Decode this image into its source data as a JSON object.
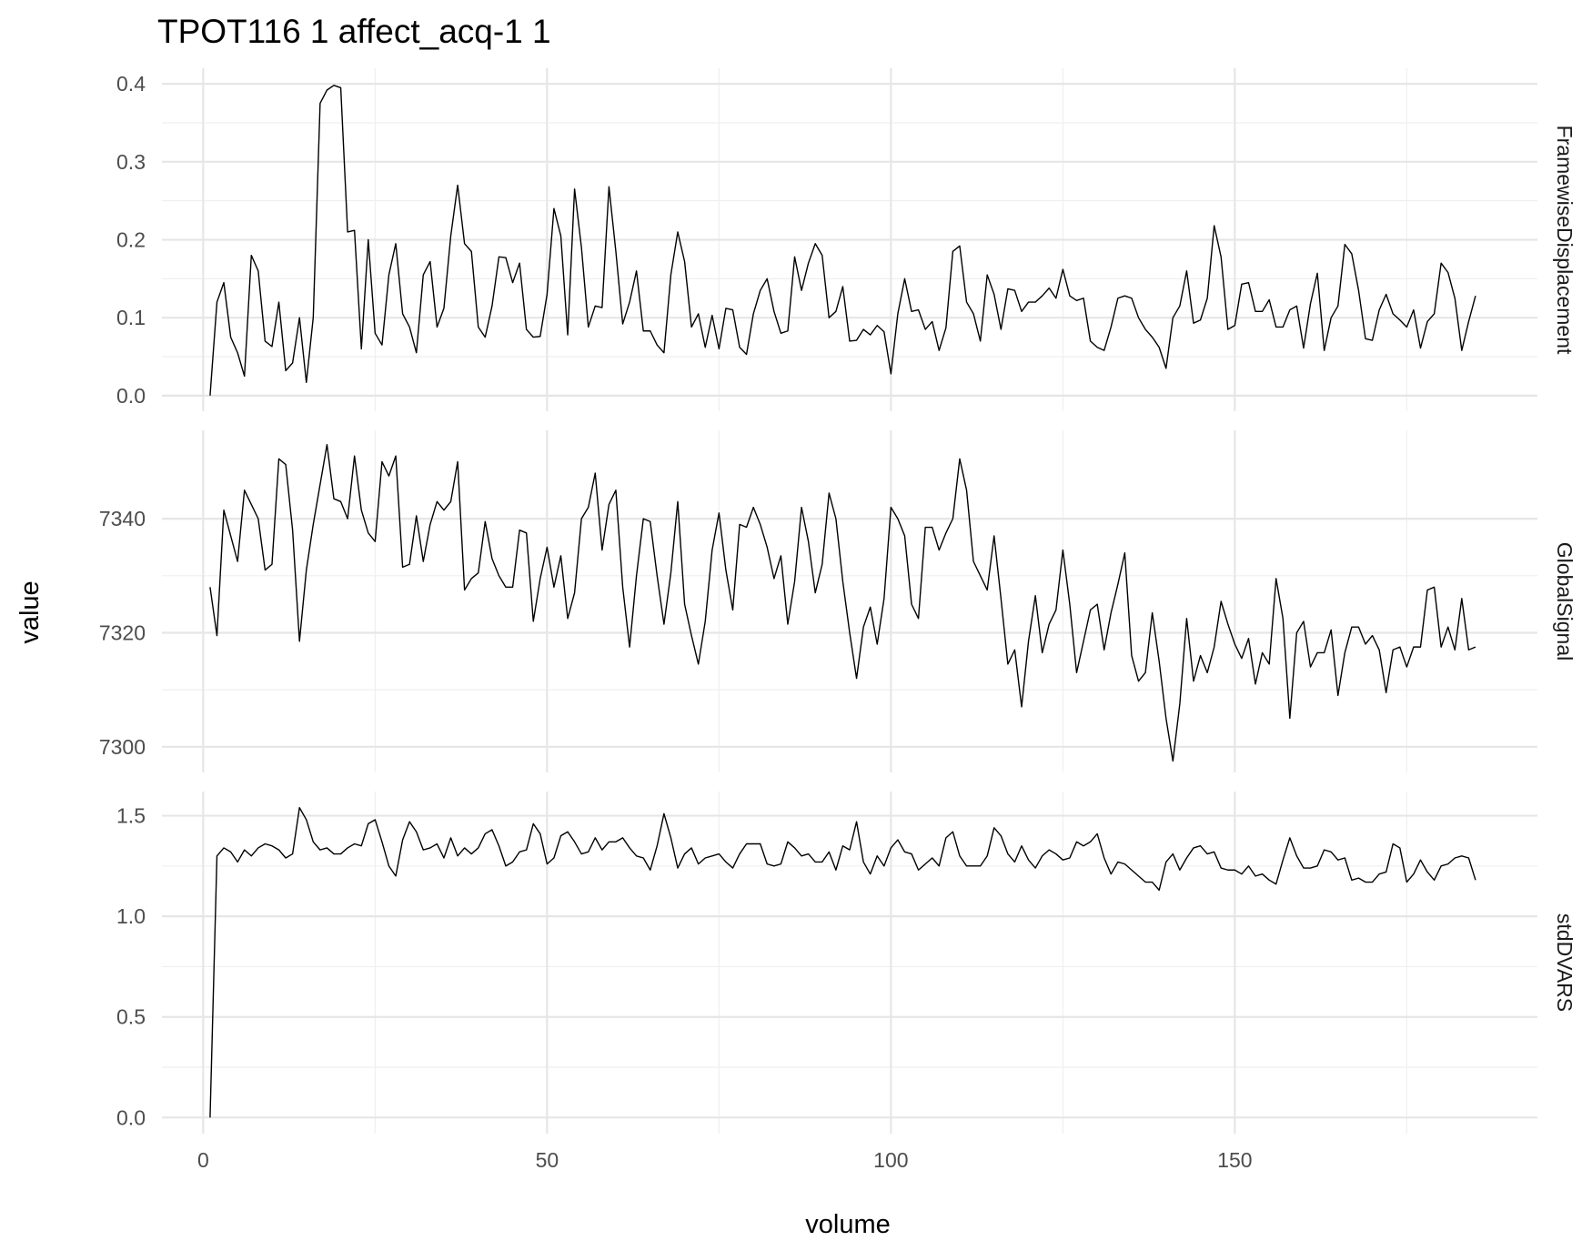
{
  "chart_data": {
    "type": "line",
    "title": "TPOT116  1  affect_acq-1  1",
    "xlabel": "volume",
    "ylabel": "value",
    "xlim": [
      -6,
      194
    ],
    "x_ticks": [
      0,
      50,
      100,
      150
    ],
    "x_tick_labels": [
      "0",
      "50",
      "100",
      "150"
    ],
    "grid": true,
    "facets": [
      {
        "name": "FramewiseDisplacement",
        "ylim": [
          -0.02,
          0.42
        ],
        "y_ticks": [
          0.0,
          0.1,
          0.2,
          0.3,
          0.4
        ],
        "y_tick_labels": [
          "0.0",
          "0.1",
          "0.2",
          "0.3",
          "0.4"
        ],
        "x_start": 1,
        "values": [
          0,
          0.12,
          0.145,
          0.075,
          0.055,
          0.025,
          0.18,
          0.16,
          0.07,
          0.063,
          0.12,
          0.032,
          0.042,
          0.1,
          0.017,
          0.1,
          0.375,
          0.392,
          0.398,
          0.395,
          0.21,
          0.212,
          0.06,
          0.2,
          0.08,
          0.065,
          0.155,
          0.195,
          0.105,
          0.088,
          0.055,
          0.155,
          0.172,
          0.088,
          0.112,
          0.205,
          0.27,
          0.195,
          0.185,
          0.088,
          0.075,
          0.115,
          0.178,
          0.177,
          0.145,
          0.17,
          0.085,
          0.075,
          0.076,
          0.13,
          0.24,
          0.205,
          0.078,
          0.265,
          0.19,
          0.088,
          0.115,
          0.113,
          0.268,
          0.185,
          0.092,
          0.12,
          0.16,
          0.083,
          0.083,
          0.065,
          0.055,
          0.155,
          0.21,
          0.172,
          0.088,
          0.105,
          0.062,
          0.103,
          0.06,
          0.112,
          0.11,
          0.062,
          0.053,
          0.105,
          0.135,
          0.15,
          0.108,
          0.08,
          0.083,
          0.178,
          0.135,
          0.17,
          0.195,
          0.18,
          0.1,
          0.108,
          0.14,
          0.07,
          0.071,
          0.085,
          0.078,
          0.09,
          0.082,
          0.028,
          0.105,
          0.15,
          0.108,
          0.11,
          0.085,
          0.095,
          0.058,
          0.087,
          0.185,
          0.192,
          0.12,
          0.105,
          0.07,
          0.155,
          0.13,
          0.085,
          0.137,
          0.135,
          0.108,
          0.12,
          0.12,
          0.128,
          0.138,
          0.125,
          0.162,
          0.128,
          0.122,
          0.125,
          0.07,
          0.062,
          0.058,
          0.088,
          0.125,
          0.128,
          0.125,
          0.1,
          0.085,
          0.075,
          0.062,
          0.035,
          0.1,
          0.115,
          0.16,
          0.093,
          0.097,
          0.125,
          0.218,
          0.178,
          0.085,
          0.09,
          0.143,
          0.145,
          0.108,
          0.108,
          0.123,
          0.088,
          0.088,
          0.11,
          0.115,
          0.061,
          0.118,
          0.157,
          0.058,
          0.1,
          0.115,
          0.194,
          0.182,
          0.135,
          0.073,
          0.071,
          0.11,
          0.13,
          0.105,
          0.097,
          0.088,
          0.11,
          0.061,
          0.095,
          0.105,
          0.17,
          0.158,
          0.125,
          0.058,
          0.095,
          0.128
        ]
      },
      {
        "name": "GlobalSignal",
        "ylim": [
          7295.5,
          7355.5
        ],
        "y_ticks": [
          7300,
          7320,
          7340
        ],
        "y_tick_labels": [
          "7300",
          "7320",
          "7340"
        ],
        "x_start": 1,
        "values": [
          7328,
          7319.5,
          7341.5,
          7337,
          7332.5,
          7345,
          7342.5,
          7340,
          7331,
          7332,
          7350.5,
          7349.5,
          7338,
          7318.5,
          7331,
          7339,
          7346,
          7353,
          7343.5,
          7343,
          7340,
          7351,
          7341.5,
          7337.5,
          7336,
          7350,
          7347.5,
          7351,
          7331.5,
          7332,
          7340.5,
          7332.5,
          7339,
          7343,
          7341.5,
          7343,
          7350,
          7327.5,
          7329.5,
          7330.5,
          7339.5,
          7333,
          7330,
          7328,
          7328,
          7338,
          7337.5,
          7322,
          7329.5,
          7335,
          7328,
          7333.5,
          7322.5,
          7327,
          7340,
          7342,
          7348,
          7334.5,
          7342.5,
          7345,
          7328,
          7317.5,
          7330,
          7340,
          7339.5,
          7330,
          7321.5,
          7330.5,
          7343,
          7325,
          7319.5,
          7314.5,
          7322,
          7334.5,
          7341,
          7331,
          7324,
          7339,
          7338.5,
          7342,
          7339,
          7335,
          7329.5,
          7333.5,
          7321.5,
          7329,
          7342,
          7336,
          7327,
          7332,
          7344.5,
          7340,
          7329,
          7320,
          7312,
          7321,
          7324.5,
          7318,
          7326,
          7342,
          7340,
          7337,
          7325,
          7322.5,
          7338.5,
          7338.5,
          7334.5,
          7337.5,
          7340,
          7350.5,
          7345,
          7332.5,
          7330,
          7327.5,
          7337,
          7326,
          7314.5,
          7317,
          7307,
          7318.5,
          7326.5,
          7316.5,
          7321.5,
          7324,
          7334.5,
          7325,
          7313,
          7318.5,
          7324,
          7325,
          7317,
          7323.5,
          7328.5,
          7334,
          7316,
          7311.5,
          7313,
          7323.5,
          7315,
          7305,
          7297.5,
          7307.5,
          7322.5,
          7311.5,
          7316,
          7313,
          7317.5,
          7325.5,
          7321.5,
          7318,
          7315.5,
          7319,
          7311,
          7316.5,
          7314.5,
          7329.5,
          7322.5,
          7305,
          7320,
          7322,
          7314,
          7316.5,
          7316.5,
          7320.5,
          7309,
          7316.5,
          7321,
          7321,
          7318,
          7319.5,
          7317,
          7309.5,
          7317,
          7317.5,
          7314,
          7317.5,
          7317.5,
          7327.5,
          7328,
          7317.5,
          7321,
          7317,
          7326,
          7317,
          7317.5
        ]
      },
      {
        "name": "stdDVARS",
        "ylim": [
          -0.08,
          1.62
        ],
        "y_ticks": [
          0.0,
          0.5,
          1.0,
          1.5
        ],
        "y_tick_labels": [
          "0.0",
          "0.5",
          "1.0",
          "1.5"
        ],
        "x_start": 1,
        "values": [
          0,
          1.3,
          1.34,
          1.32,
          1.27,
          1.33,
          1.3,
          1.34,
          1.36,
          1.35,
          1.33,
          1.29,
          1.31,
          1.54,
          1.48,
          1.37,
          1.33,
          1.34,
          1.31,
          1.31,
          1.34,
          1.36,
          1.35,
          1.46,
          1.48,
          1.37,
          1.25,
          1.2,
          1.38,
          1.47,
          1.42,
          1.33,
          1.34,
          1.36,
          1.29,
          1.39,
          1.3,
          1.34,
          1.31,
          1.34,
          1.41,
          1.43,
          1.35,
          1.25,
          1.27,
          1.32,
          1.33,
          1.46,
          1.41,
          1.26,
          1.29,
          1.4,
          1.42,
          1.37,
          1.31,
          1.32,
          1.39,
          1.33,
          1.37,
          1.37,
          1.39,
          1.34,
          1.3,
          1.29,
          1.23,
          1.35,
          1.51,
          1.39,
          1.24,
          1.31,
          1.34,
          1.26,
          1.29,
          1.3,
          1.31,
          1.27,
          1.24,
          1.31,
          1.36,
          1.36,
          1.36,
          1.26,
          1.25,
          1.26,
          1.37,
          1.34,
          1.3,
          1.31,
          1.27,
          1.27,
          1.32,
          1.23,
          1.35,
          1.33,
          1.47,
          1.27,
          1.21,
          1.3,
          1.25,
          1.34,
          1.38,
          1.32,
          1.31,
          1.23,
          1.26,
          1.29,
          1.25,
          1.39,
          1.42,
          1.3,
          1.25,
          1.25,
          1.25,
          1.3,
          1.44,
          1.4,
          1.31,
          1.27,
          1.35,
          1.28,
          1.24,
          1.3,
          1.33,
          1.31,
          1.28,
          1.29,
          1.37,
          1.35,
          1.37,
          1.41,
          1.29,
          1.21,
          1.27,
          1.26,
          1.23,
          1.2,
          1.17,
          1.17,
          1.13,
          1.27,
          1.31,
          1.23,
          1.29,
          1.34,
          1.35,
          1.31,
          1.32,
          1.24,
          1.23,
          1.23,
          1.21,
          1.25,
          1.2,
          1.21,
          1.18,
          1.16,
          1.28,
          1.39,
          1.3,
          1.24,
          1.24,
          1.25,
          1.33,
          1.32,
          1.28,
          1.29,
          1.18,
          1.19,
          1.17,
          1.17,
          1.21,
          1.22,
          1.36,
          1.34,
          1.17,
          1.21,
          1.28,
          1.22,
          1.18,
          1.25,
          1.26,
          1.29,
          1.3,
          1.29,
          1.18
        ]
      }
    ]
  }
}
